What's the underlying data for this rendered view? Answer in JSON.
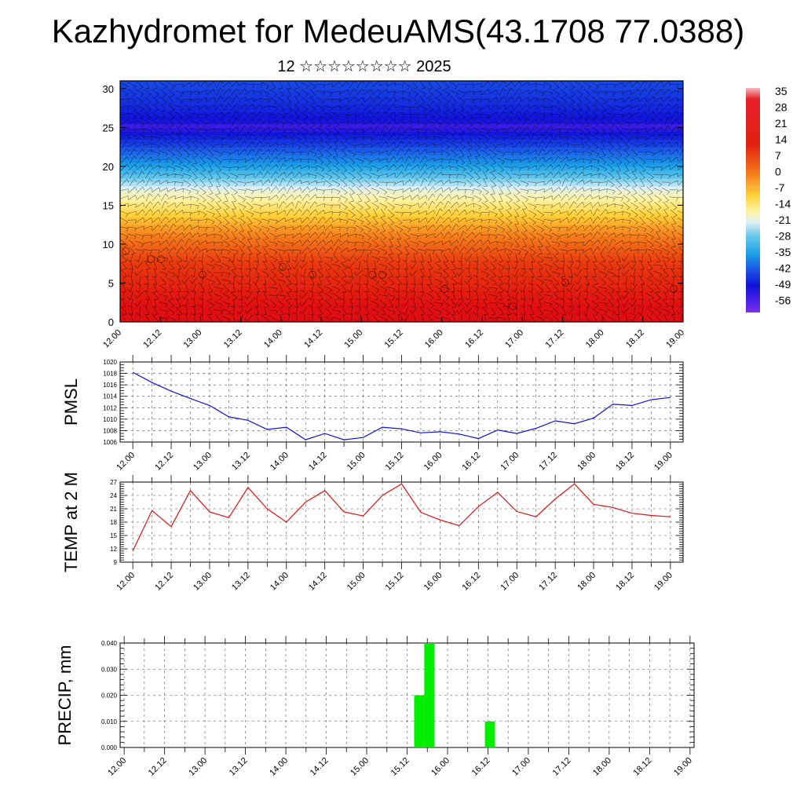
{
  "header": {
    "title": "Kazhydromet for MedeuAMS(43.1708 77.0388)",
    "subtitle": "12 ☆☆☆☆☆☆☆☆ 2025"
  },
  "time_labels": [
    "12.00",
    "12.12",
    "13.00",
    "13.12",
    "14.00",
    "14.12",
    "15.00",
    "15.12",
    "16.00",
    "16.12",
    "17.00",
    "17.12",
    "18.00",
    "18.12",
    "19.00"
  ],
  "colors": {
    "pmsl_line": "#1010e0",
    "temp_line": "#e01010",
    "precip_bar": "#00ee00"
  },
  "chart_data": [
    {
      "type": "heatmap",
      "name": "vertical-profile",
      "x": [
        "12.00",
        "12.12",
        "13.00",
        "13.12",
        "14.00",
        "14.12",
        "15.00",
        "15.12",
        "16.00",
        "16.12",
        "17.00",
        "17.12",
        "18.00",
        "18.12",
        "19.00"
      ],
      "ylim": [
        0,
        31
      ],
      "yticks": [
        0,
        5,
        10,
        15,
        20,
        25,
        30
      ],
      "colorbar_labels": [
        "35",
        "28",
        "21",
        "14",
        "7",
        "0",
        "-7",
        "-14",
        "-21",
        "-28",
        "-35",
        "-42",
        "-49",
        "-56"
      ],
      "profile": [
        {
          "level": 0,
          "value": 28
        },
        {
          "level": 4,
          "value": 21
        },
        {
          "level": 8,
          "value": 14
        },
        {
          "level": 12,
          "value": 3
        },
        {
          "level": 15,
          "value": -7
        },
        {
          "level": 17,
          "value": -14
        },
        {
          "level": 19,
          "value": -28
        },
        {
          "level": 21,
          "value": -40
        },
        {
          "level": 23,
          "value": -50
        },
        {
          "level": 25,
          "value": -58
        },
        {
          "level": 28,
          "value": -52
        },
        {
          "level": 31,
          "value": -48
        }
      ]
    },
    {
      "type": "line",
      "name": "pmsl",
      "ylabel": "PMSL",
      "ylim": [
        1006,
        1020
      ],
      "yticks": [
        1006,
        1008,
        1010,
        1012,
        1014,
        1016,
        1018,
        1020
      ],
      "xlim": [
        -0.33,
        14.33
      ],
      "x": [
        0,
        0.5,
        1,
        1.5,
        2,
        2.5,
        3,
        3.5,
        4,
        4.5,
        5,
        5.5,
        6,
        6.5,
        7,
        7.5,
        8,
        8.5,
        9,
        9.5,
        10,
        10.5,
        11,
        11.5,
        12,
        12.5,
        13,
        13.5,
        14
      ],
      "series": [
        {
          "values": [
            1018.2,
            1016.4,
            1014.9,
            1013.6,
            1012.4,
            1010.4,
            1009.8,
            1008.2,
            1008.6,
            1006.4,
            1007.5,
            1006.4,
            1006.8,
            1008.6,
            1008.3,
            1007.6,
            1007.8,
            1007.4,
            1006.6,
            1008.1,
            1007.5,
            1008.4,
            1009.7,
            1009.2,
            1010.2,
            1012.6,
            1012.4,
            1013.4,
            1013.8
          ]
        }
      ]
    },
    {
      "type": "line",
      "name": "temp",
      "ylabel": "TEMP at 2 M",
      "ylim": [
        9,
        27
      ],
      "yticks": [
        9,
        12,
        15,
        18,
        21,
        24,
        27
      ],
      "xlim": [
        -0.33,
        14.33
      ],
      "x": [
        0,
        0.5,
        1,
        1.5,
        2,
        2.5,
        3,
        3.5,
        4,
        4.5,
        5,
        5.5,
        6,
        6.5,
        7,
        7.5,
        8,
        8.5,
        9,
        9.5,
        10,
        10.5,
        11,
        11.5,
        12,
        12.5,
        13,
        13.5,
        14
      ],
      "series": [
        {
          "values": [
            11.5,
            20.6,
            17.0,
            25.1,
            20.3,
            19.0,
            25.8,
            21.0,
            18.0,
            22.5,
            25.1,
            20.3,
            19.4,
            24.0,
            26.6,
            20.2,
            18.5,
            17.2,
            21.5,
            24.7,
            20.4,
            19.2,
            23.2,
            26.6,
            22.0,
            21.3,
            20.0,
            19.5,
            19.2
          ]
        }
      ]
    },
    {
      "type": "bar",
      "name": "precip",
      "ylabel": "PRECIP, mm",
      "ylim": [
        0,
        0.04
      ],
      "ytick_labels": [
        "0.000",
        "0.010",
        "0.020",
        "0.030",
        "0.040"
      ],
      "xlim": [
        -0.1,
        14.1
      ],
      "bar_width": 0.25,
      "bars": [
        {
          "x": 7.3,
          "value": 0.02
        },
        {
          "x": 7.55,
          "value": 0.04
        },
        {
          "x": 9.05,
          "value": 0.01
        }
      ]
    }
  ]
}
